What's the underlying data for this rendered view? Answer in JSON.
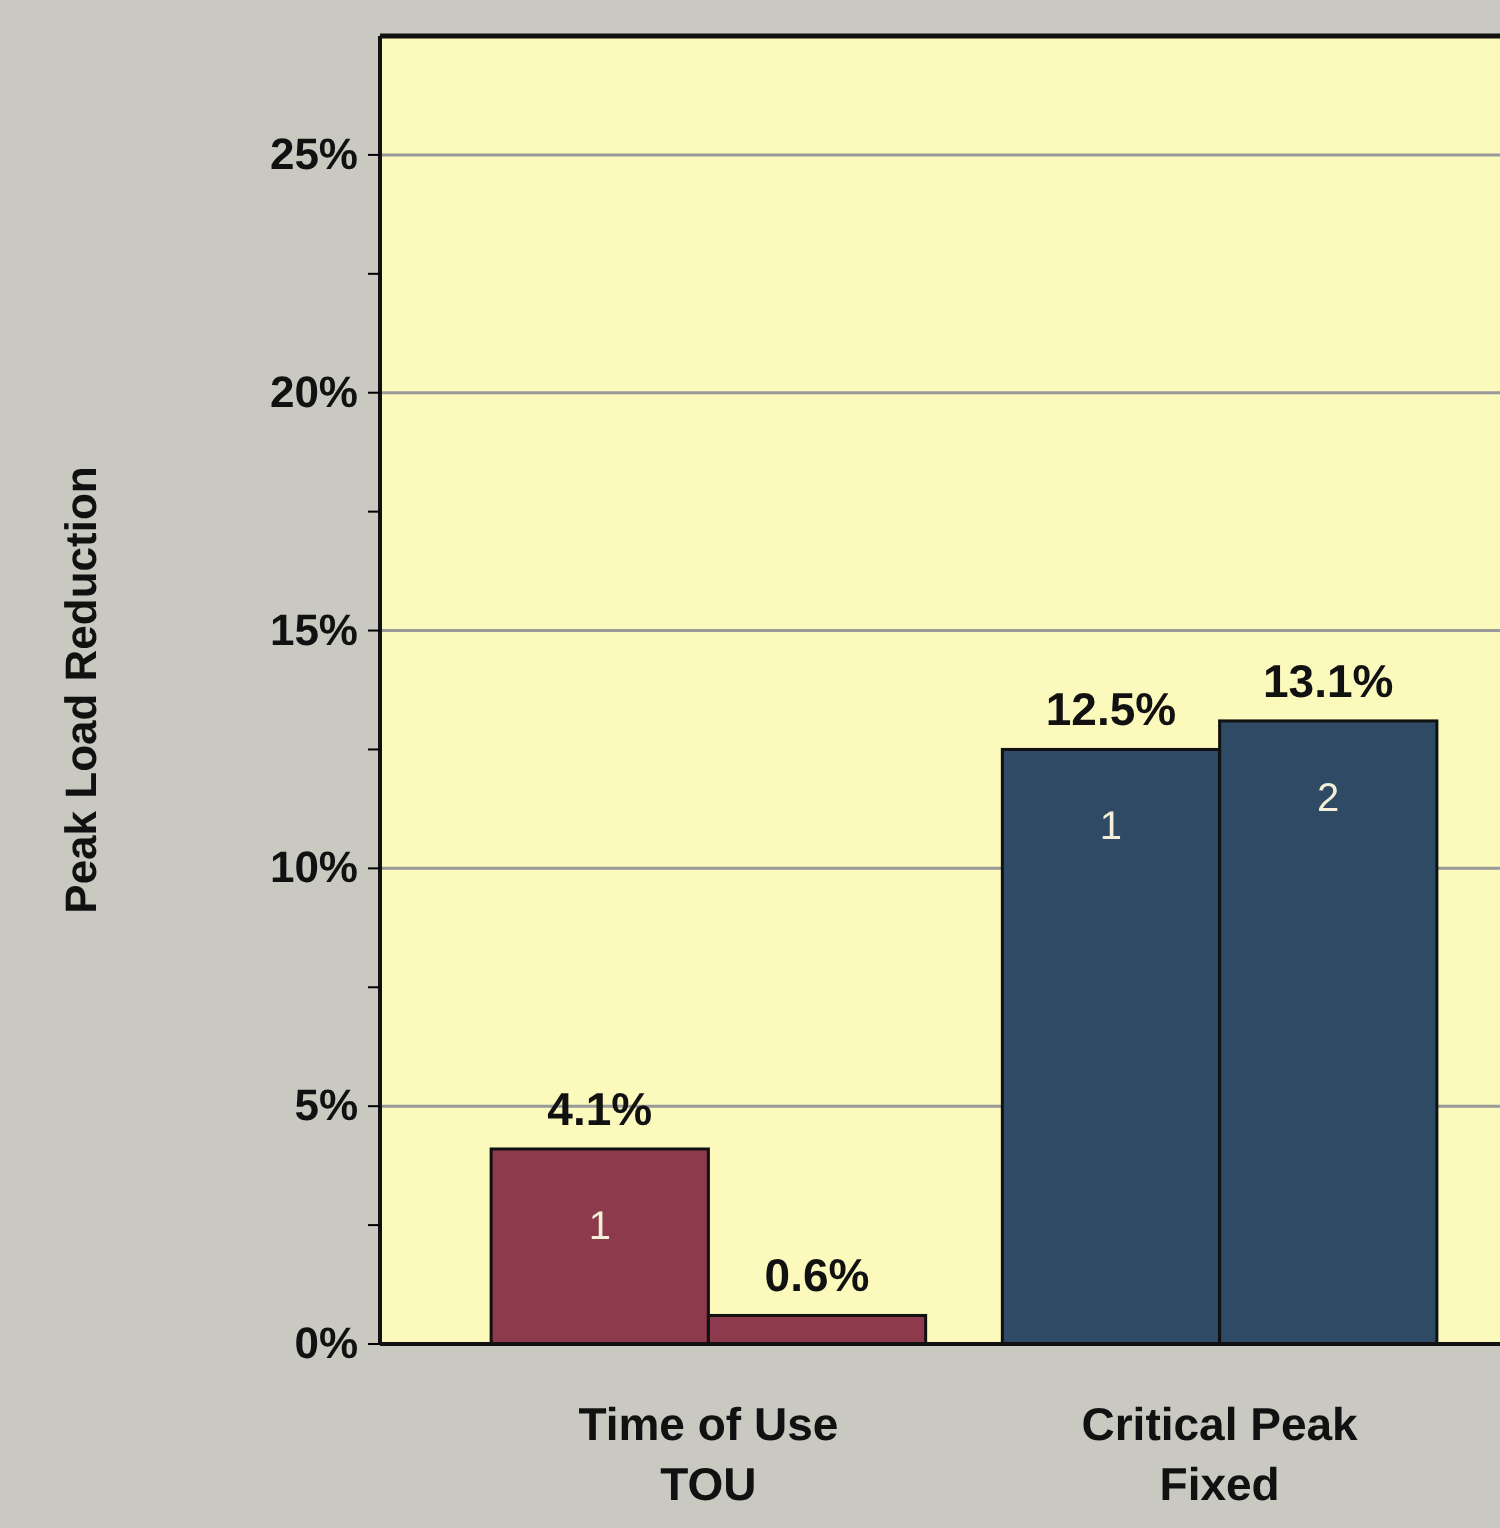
{
  "chart_data": {
    "type": "bar",
    "ylabel": "Peak Load Reduction",
    "categories": [
      "Time of Use\nTOU",
      "Critical Peak\nFixed"
    ],
    "series": [
      {
        "name": "1",
        "colors": [
          "#8c3a4c",
          "#2e4a64"
        ],
        "values": [
          4.1,
          12.5
        ],
        "value_labels": [
          "4.1%",
          "12.5%"
        ]
      },
      {
        "name": "2",
        "colors": [
          "#8c3a4c",
          "#2e4a64"
        ],
        "values": [
          0.6,
          13.1
        ],
        "value_labels": [
          "0.6%",
          "13.1%"
        ]
      }
    ],
    "ylim": [
      0,
      27.5
    ],
    "yticks": [
      {
        "value": 0,
        "label": "0%"
      },
      {
        "value": 2.5,
        "label": null
      },
      {
        "value": 5,
        "label": "5%"
      },
      {
        "value": 7.5,
        "label": null
      },
      {
        "value": 10,
        "label": "10%"
      },
      {
        "value": 12.5,
        "label": null
      },
      {
        "value": 15,
        "label": "15%"
      },
      {
        "value": 17.5,
        "label": null
      },
      {
        "value": 20,
        "label": "20%"
      },
      {
        "value": 22.5,
        "label": null
      },
      {
        "value": 25,
        "label": "25%"
      }
    ],
    "grid": "y"
  }
}
